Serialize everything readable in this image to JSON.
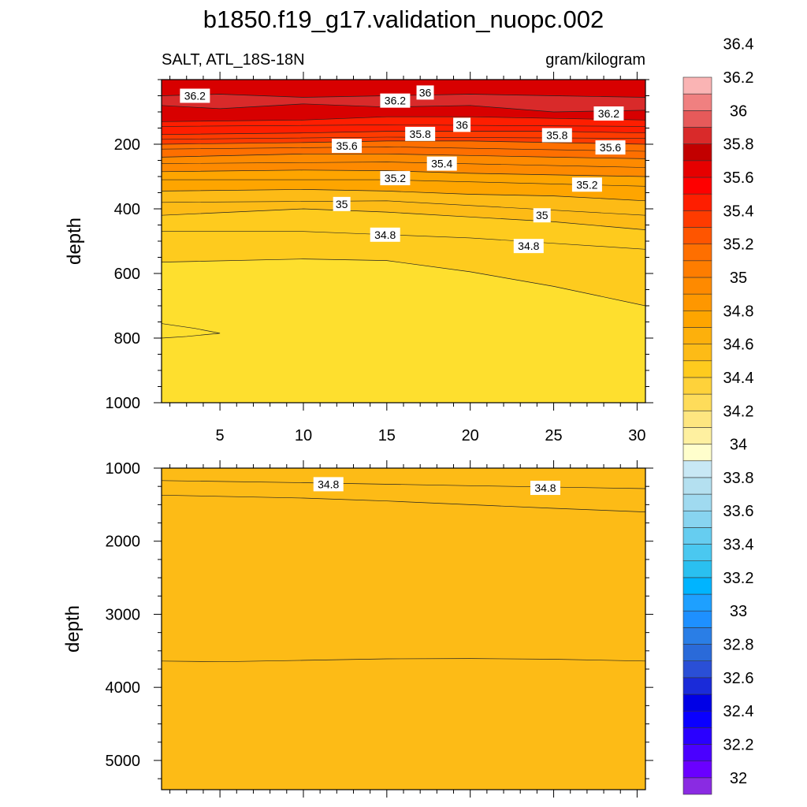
{
  "title": "b1850.f19_g17.validation_nuopc.002",
  "chart_data": [
    {
      "type": "heatmap",
      "subtitle_left": "SALT, ATL_18S-18N",
      "subtitle_right": "gram/kilogram",
      "ylabel": "depth",
      "xlim": [
        1.5,
        30.5
      ],
      "ylim": [
        0,
        1000
      ],
      "y_reversed": true,
      "xticks": [
        5,
        10,
        15,
        20,
        25,
        30
      ],
      "yticks": [
        200,
        400,
        600,
        800,
        1000
      ],
      "background_value": 34.5,
      "bands": [
        {
          "value": 34.7,
          "color": "#fecb1e",
          "top": [
            [
              1.5,
              565
            ],
            [
              10,
              555
            ],
            [
              15,
              560
            ],
            [
              20,
              595
            ],
            [
              25,
              640
            ],
            [
              30.5,
              700
            ]
          ]
        },
        {
          "value": 34.9,
          "color": "#fdbb16",
          "top": [
            [
              1.5,
              420
            ],
            [
              10,
              400
            ],
            [
              15,
              410
            ],
            [
              20,
              425
            ],
            [
              25,
              440
            ],
            [
              30.5,
              465
            ]
          ]
        },
        {
          "value": 35.0,
          "color": "#fea500",
          "top": [
            [
              1.5,
              345
            ],
            [
              10,
              340
            ],
            [
              15,
              345
            ],
            [
              20,
              355
            ],
            [
              25,
              360
            ],
            [
              30.5,
              375
            ]
          ]
        },
        {
          "value": 35.2,
          "color": "#fe8a00",
          "top": [
            [
              1.5,
              285
            ],
            [
              10,
              280
            ],
            [
              15,
              282
            ],
            [
              20,
              290
            ],
            [
              25,
              295
            ],
            [
              30.5,
              300
            ]
          ]
        },
        {
          "value": 35.4,
          "color": "#fe6f00",
          "top": [
            [
              1.5,
              240
            ],
            [
              10,
              230
            ],
            [
              15,
              230
            ],
            [
              20,
              235
            ],
            [
              25,
              240
            ],
            [
              30.5,
              245
            ]
          ]
        },
        {
          "value": 35.6,
          "color": "#fe3b00",
          "top": [
            [
              1.5,
              200
            ],
            [
              10,
              195
            ],
            [
              15,
              190
            ],
            [
              20,
              190
            ],
            [
              25,
              195
            ],
            [
              30.5,
              200
            ]
          ]
        },
        {
          "value": 35.8,
          "color": "#fe1e00",
          "top": [
            [
              1.5,
              170
            ],
            [
              10,
              165
            ],
            [
              15,
              160
            ],
            [
              20,
              160
            ],
            [
              25,
              160
            ],
            [
              30.5,
              165
            ]
          ]
        },
        {
          "value": 36.0,
          "color": "#d80000",
          "top": [
            [
              1.5,
              130
            ],
            [
              10,
              125
            ],
            [
              15,
              115
            ],
            [
              20,
              115
            ],
            [
              25,
              120
            ],
            [
              30.5,
              125
            ]
          ]
        },
        {
          "value": 36.1,
          "color": "#c20000",
          "top": [
            [
              1.5,
              0
            ],
            [
              30.5,
              0
            ]
          ]
        },
        {
          "value": 36.3,
          "color": "#d92a2a",
          "top": [
            [
              1.5,
              50
            ],
            [
              5,
              45
            ],
            [
              10,
              55
            ],
            [
              15,
              50
            ],
            [
              20,
              45
            ],
            [
              25,
              50
            ],
            [
              30.5,
              55
            ]
          ],
          "bottom": [
            [
              1.5,
              80
            ],
            [
              5,
              90
            ],
            [
              10,
              75
            ],
            [
              15,
              85
            ],
            [
              20,
              80
            ],
            [
              25,
              100
            ],
            [
              30.5,
              95
            ]
          ]
        }
      ],
      "contour_labels": [
        {
          "text": "36.2",
          "x": 3.5,
          "y": 50
        },
        {
          "text": "36",
          "x": 17.3,
          "y": 40
        },
        {
          "text": "36.2",
          "x": 15.5,
          "y": 65
        },
        {
          "text": "36.2",
          "x": 28.3,
          "y": 105
        },
        {
          "text": "36",
          "x": 19.5,
          "y": 140
        },
        {
          "text": "35.8",
          "x": 17.0,
          "y": 168
        },
        {
          "text": "35.8",
          "x": 25.2,
          "y": 172
        },
        {
          "text": "35.6",
          "x": 12.6,
          "y": 205
        },
        {
          "text": "35.6",
          "x": 28.4,
          "y": 210
        },
        {
          "text": "35.4",
          "x": 18.3,
          "y": 260
        },
        {
          "text": "35.2",
          "x": 15.5,
          "y": 305
        },
        {
          "text": "35.2",
          "x": 27.0,
          "y": 325
        },
        {
          "text": "35",
          "x": 12.3,
          "y": 385
        },
        {
          "text": "35",
          "x": 24.3,
          "y": 420
        },
        {
          "text": "34.8",
          "x": 14.9,
          "y": 480
        },
        {
          "text": "34.8",
          "x": 23.5,
          "y": 515
        }
      ]
    },
    {
      "type": "heatmap",
      "ylabel": "depth",
      "xlim": [
        1.5,
        30.5
      ],
      "ylim": [
        1000,
        5400
      ],
      "y_reversed": true,
      "xticks": [
        5,
        10,
        15,
        20,
        25,
        30
      ],
      "yticks": [
        1000,
        2000,
        3000,
        4000,
        5000
      ],
      "background_value": 34.8,
      "bands": [
        {
          "value": 34.8,
          "color": "#fdbb16",
          "top": [
            [
              1.5,
              1000
            ],
            [
              30.5,
              1000
            ]
          ]
        },
        {
          "value": 34.9,
          "color": "#fea500",
          "top": [
            [
              1.5,
              1370
            ],
            [
              10,
              1410
            ],
            [
              15,
              1450
            ],
            [
              20,
              1500
            ],
            [
              25,
              1550
            ],
            [
              30.5,
              1600
            ]
          ]
        },
        {
          "value": 34.8,
          "color": "#fdbb16",
          "top": [
            [
              1.5,
              3640
            ],
            [
              5,
              3650
            ],
            [
              10,
              3630
            ],
            [
              15,
              3610
            ],
            [
              20,
              3605
            ],
            [
              25,
              3615
            ],
            [
              30.5,
              3640
            ]
          ]
        }
      ],
      "extra_lines": [
        [
          [
            1.5,
            1170
          ],
          [
            10,
            1200
          ],
          [
            20,
            1240
          ],
          [
            30.5,
            1280
          ]
        ]
      ],
      "contour_labels": [
        {
          "text": "34.8",
          "x": 11.5,
          "y": 1220
        },
        {
          "text": "34.8",
          "x": 24.5,
          "y": 1270
        }
      ]
    }
  ],
  "colorbar": {
    "colors": [
      "#8a2be2",
      "#6a00ff",
      "#4a00ff",
      "#2a00ff",
      "#0a00ff",
      "#0000e6",
      "#1a2bd9",
      "#2a4fd6",
      "#2a6ad9",
      "#2a7ee6",
      "#1e90ff",
      "#1ea0ff",
      "#00b4ff",
      "#2ac0f0",
      "#4ac8f0",
      "#66cdf0",
      "#88d4f0",
      "#a0daf0",
      "#b4e0f0",
      "#c8e8f5",
      "#fffecc",
      "#fef0a0",
      "#fee680",
      "#fedc5a",
      "#fed23a",
      "#fecb1e",
      "#fdbb16",
      "#fdb00c",
      "#fea500",
      "#fe9700",
      "#fe8a00",
      "#fe7d00",
      "#fe6f00",
      "#fe5500",
      "#fe3b00",
      "#fe1e00",
      "#fe0000",
      "#e60000",
      "#c20000",
      "#d92a2a",
      "#e65a5a",
      "#f08080",
      "#fab4b4"
    ],
    "labels": [
      "32",
      "32.2",
      "32.4",
      "32.6",
      "32.8",
      "33",
      "33.2",
      "33.4",
      "33.6",
      "33.8",
      "34",
      "34.2",
      "34.4",
      "34.6",
      "34.8",
      "35",
      "35.2",
      "35.4",
      "35.6",
      "35.8",
      "36",
      "36.2",
      "36.4"
    ]
  }
}
